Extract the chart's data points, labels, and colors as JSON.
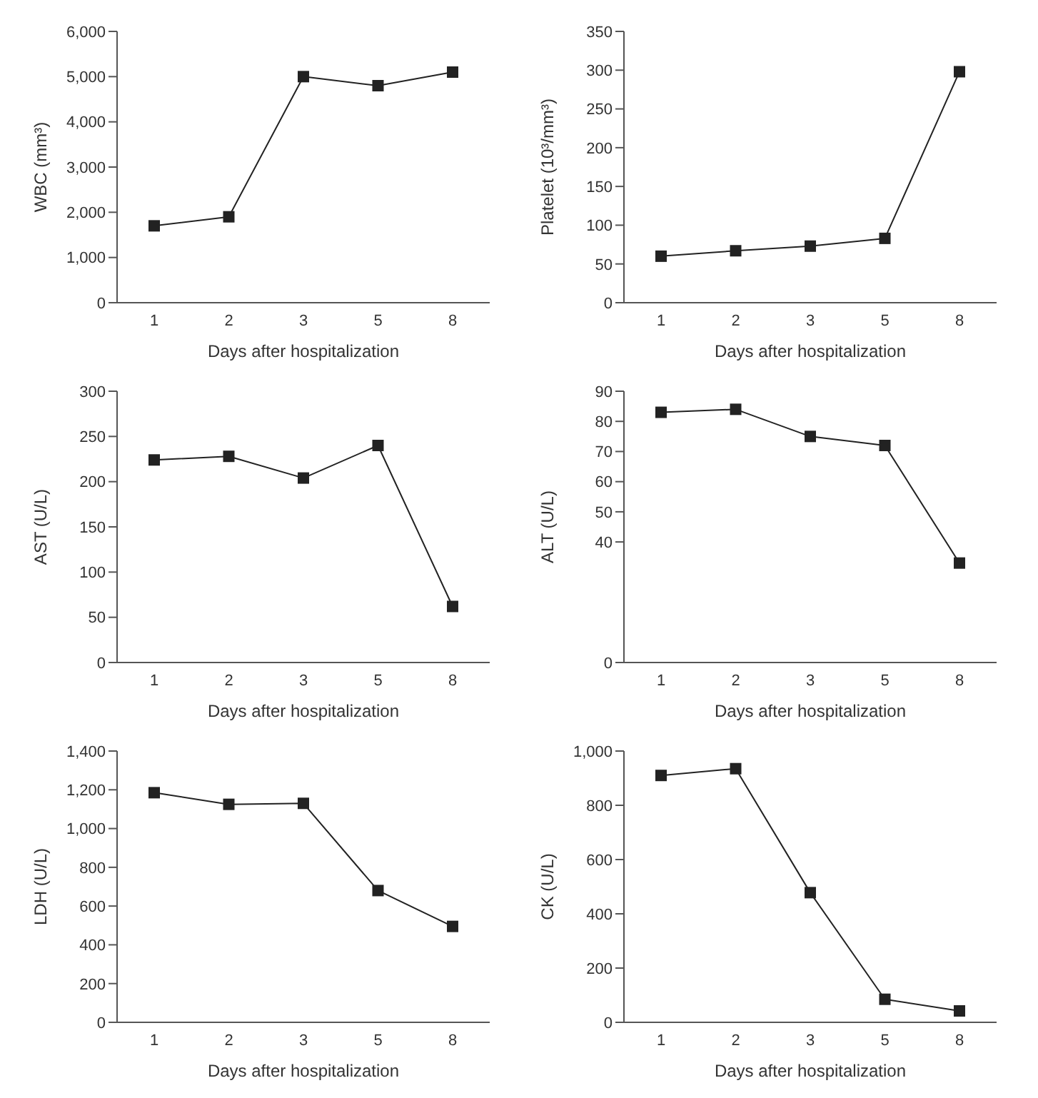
{
  "chart_data": [
    {
      "type": "line",
      "categories": [
        "1",
        "2",
        "3",
        "5",
        "8"
      ],
      "xlabel": "Days after hospitalization",
      "ylabel": "WBC (mm³)",
      "ylim": [
        0,
        6000
      ],
      "yticks": [
        {
          "value": 0,
          "label": "0"
        },
        {
          "value": 1000,
          "label": "1,000"
        },
        {
          "value": 2000,
          "label": "2,000"
        },
        {
          "value": 3000,
          "label": "3,000"
        },
        {
          "value": 4000,
          "label": "4,000"
        },
        {
          "value": 5000,
          "label": "5,000"
        },
        {
          "value": 6000,
          "label": "6,000"
        }
      ],
      "marker": "square",
      "series": [
        {
          "color": "#222222",
          "values": [
            1700,
            1900,
            5000,
            4800,
            5100
          ]
        }
      ]
    },
    {
      "type": "line",
      "categories": [
        "1",
        "2",
        "3",
        "5",
        "8"
      ],
      "xlabel": "Days after hospitalization",
      "ylabel": "Platelet (10³/mm³)",
      "ylim": [
        0,
        350
      ],
      "yticks": [
        0,
        50,
        100,
        150,
        200,
        250,
        300,
        350
      ],
      "marker": "square",
      "series": [
        {
          "color": "#222222",
          "values": [
            60,
            67,
            73,
            83,
            298
          ]
        }
      ]
    },
    {
      "type": "line",
      "categories": [
        "1",
        "2",
        "3",
        "5",
        "8"
      ],
      "xlabel": "Days after hospitalization",
      "ylabel": "AST (U/L)",
      "ylim": [
        0,
        300
      ],
      "yticks": [
        0,
        50,
        100,
        150,
        200,
        250,
        300
      ],
      "marker": "square",
      "series": [
        {
          "color": "#222222",
          "values": [
            224,
            228,
            204,
            240,
            62
          ]
        }
      ]
    },
    {
      "type": "line",
      "categories": [
        "1",
        "2",
        "3",
        "5",
        "8"
      ],
      "xlabel": "Days after hospitalization",
      "ylabel": "ALT (U/L)",
      "ylim": [
        0,
        90
      ],
      "yticks": [
        0,
        40,
        50,
        60,
        70,
        80,
        90
      ],
      "marker": "square",
      "series": [
        {
          "color": "#222222",
          "values": [
            83,
            84,
            75,
            72,
            33
          ]
        }
      ]
    },
    {
      "type": "line",
      "categories": [
        "1",
        "2",
        "3",
        "5",
        "8"
      ],
      "xlabel": "Days after hospitalization",
      "ylabel": "LDH (U/L)",
      "ylim": [
        0,
        1400
      ],
      "yticks": [
        {
          "value": 0,
          "label": "0"
        },
        {
          "value": 200,
          "label": "200"
        },
        {
          "value": 400,
          "label": "400"
        },
        {
          "value": 600,
          "label": "600"
        },
        {
          "value": 800,
          "label": "800"
        },
        {
          "value": 1000,
          "label": "1,000"
        },
        {
          "value": 1200,
          "label": "1,200"
        },
        {
          "value": 1400,
          "label": "1,400"
        }
      ],
      "marker": "square",
      "series": [
        {
          "color": "#222222",
          "values": [
            1185,
            1125,
            1130,
            680,
            495
          ]
        }
      ]
    },
    {
      "type": "line",
      "categories": [
        "1",
        "2",
        "3",
        "5",
        "8"
      ],
      "xlabel": "Days after hospitalization",
      "ylabel": "CK (U/L)",
      "ylim": [
        0,
        1000
      ],
      "yticks": [
        0,
        200,
        400,
        600,
        800,
        {
          "value": 1000,
          "label": "1,000"
        }
      ],
      "marker": "square",
      "series": [
        {
          "color": "#222222",
          "values": [
            910,
            935,
            478,
            85,
            42
          ]
        }
      ]
    }
  ]
}
